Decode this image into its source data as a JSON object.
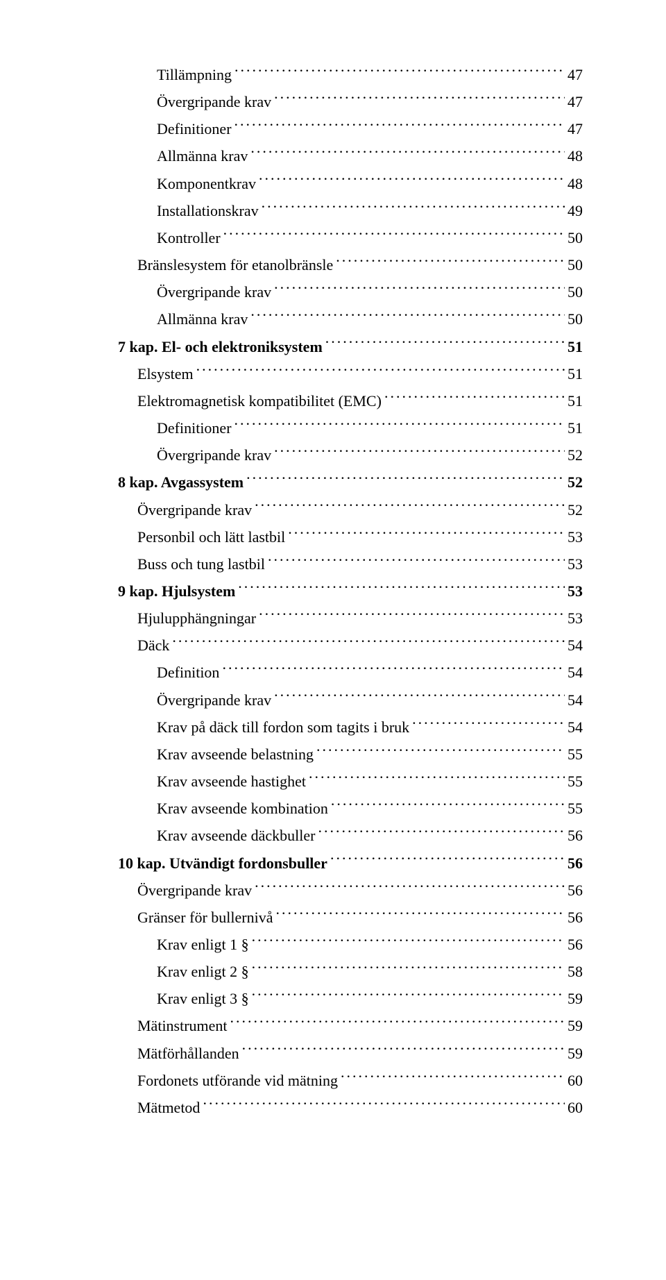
{
  "toc": [
    {
      "label": "Tillämpning",
      "page": "47",
      "indent": 2,
      "bold": false
    },
    {
      "label": "Övergripande krav",
      "page": "47",
      "indent": 2,
      "bold": false
    },
    {
      "label": "Definitioner",
      "page": "47",
      "indent": 2,
      "bold": false
    },
    {
      "label": "Allmänna krav",
      "page": "48",
      "indent": 2,
      "bold": false
    },
    {
      "label": "Komponentkrav",
      "page": "48",
      "indent": 2,
      "bold": false
    },
    {
      "label": "Installationskrav",
      "page": "49",
      "indent": 2,
      "bold": false
    },
    {
      "label": "Kontroller",
      "page": "50",
      "indent": 2,
      "bold": false
    },
    {
      "label": "Bränslesystem för etanolbränsle",
      "page": "50",
      "indent": 1,
      "bold": false
    },
    {
      "label": "Övergripande krav",
      "page": "50",
      "indent": 2,
      "bold": false
    },
    {
      "label": "Allmänna krav",
      "page": "50",
      "indent": 2,
      "bold": false
    },
    {
      "label": "7 kap. El- och elektroniksystem",
      "page": "51",
      "indent": 0,
      "bold": true
    },
    {
      "label": "Elsystem",
      "page": "51",
      "indent": 1,
      "bold": false
    },
    {
      "label": "Elektromagnetisk kompatibilitet (EMC)",
      "page": "51",
      "indent": 1,
      "bold": false
    },
    {
      "label": "Definitioner",
      "page": "51",
      "indent": 2,
      "bold": false
    },
    {
      "label": "Övergripande krav",
      "page": "52",
      "indent": 2,
      "bold": false
    },
    {
      "label": "8 kap. Avgassystem",
      "page": "52",
      "indent": 0,
      "bold": true
    },
    {
      "label": "Övergripande krav",
      "page": "52",
      "indent": 1,
      "bold": false
    },
    {
      "label": "Personbil och lätt lastbil",
      "page": "53",
      "indent": 1,
      "bold": false
    },
    {
      "label": "Buss och tung lastbil",
      "page": "53",
      "indent": 1,
      "bold": false
    },
    {
      "label": "9 kap. Hjulsystem",
      "page": "53",
      "indent": 0,
      "bold": true
    },
    {
      "label": "Hjulupphängningar",
      "page": "53",
      "indent": 1,
      "bold": false
    },
    {
      "label": "Däck",
      "page": "54",
      "indent": 1,
      "bold": false
    },
    {
      "label": "Definition",
      "page": "54",
      "indent": 2,
      "bold": false
    },
    {
      "label": "Övergripande krav",
      "page": "54",
      "indent": 2,
      "bold": false
    },
    {
      "label": "Krav på däck till fordon som tagits i bruk",
      "page": "54",
      "indent": 2,
      "bold": false
    },
    {
      "label": "Krav avseende belastning",
      "page": "55",
      "indent": 2,
      "bold": false
    },
    {
      "label": "Krav avseende hastighet",
      "page": "55",
      "indent": 2,
      "bold": false
    },
    {
      "label": "Krav avseende kombination",
      "page": "55",
      "indent": 2,
      "bold": false
    },
    {
      "label": "Krav avseende däckbuller",
      "page": "56",
      "indent": 2,
      "bold": false
    },
    {
      "label": "10 kap. Utvändigt fordonsbuller",
      "page": "56",
      "indent": 0,
      "bold": true
    },
    {
      "label": "Övergripande krav",
      "page": "56",
      "indent": 1,
      "bold": false
    },
    {
      "label": "Gränser för bullernivå",
      "page": "56",
      "indent": 1,
      "bold": false
    },
    {
      "label": "Krav enligt 1 §",
      "page": "56",
      "indent": 2,
      "bold": false
    },
    {
      "label": "Krav enligt 2 §",
      "page": "58",
      "indent": 2,
      "bold": false
    },
    {
      "label": "Krav enligt 3 §",
      "page": "59",
      "indent": 2,
      "bold": false
    },
    {
      "label": "Mätinstrument",
      "page": "59",
      "indent": 1,
      "bold": false
    },
    {
      "label": "Mätförhållanden",
      "page": "59",
      "indent": 1,
      "bold": false
    },
    {
      "label": "Fordonets utförande vid mätning",
      "page": "60",
      "indent": 1,
      "bold": false
    },
    {
      "label": "Mätmetod",
      "page": "60",
      "indent": 1,
      "bold": false
    }
  ]
}
